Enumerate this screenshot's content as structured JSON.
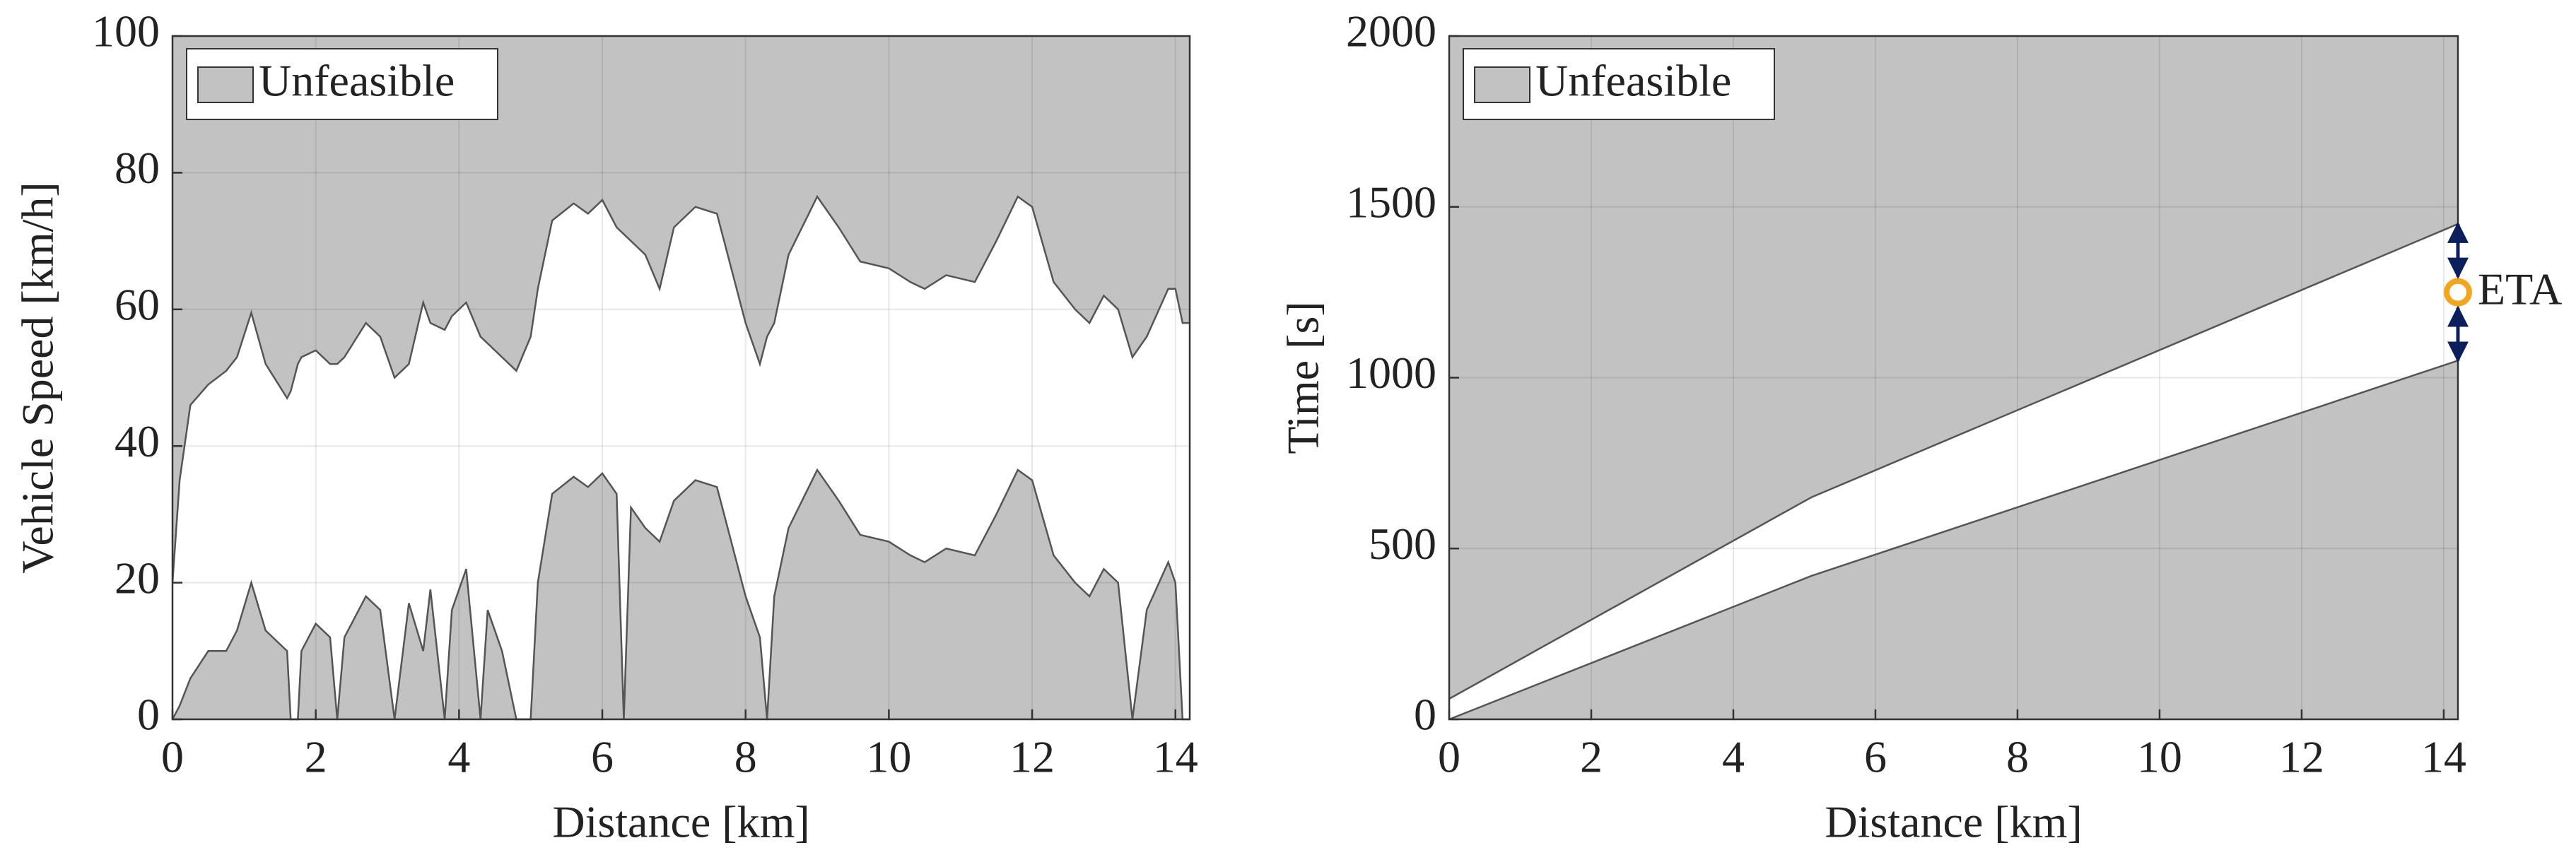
{
  "chart_data": [
    {
      "type": "area",
      "xlabel": "Distance [km]",
      "ylabel": "Vehicle Speed [km/h]",
      "xlim": [
        0,
        14.2
      ],
      "ylim": [
        0,
        100
      ],
      "xticks": [
        0,
        2,
        4,
        6,
        8,
        10,
        12,
        14
      ],
      "yticks": [
        0,
        20,
        40,
        60,
        80,
        100
      ],
      "grid": true,
      "fill_color": "#c2c2c2",
      "line_color": "#555555",
      "legend": {
        "label": "Unfeasible",
        "loc": "upper left"
      },
      "x": [
        0,
        0.1,
        0.25,
        0.5,
        0.75,
        0.9,
        1.1,
        1.3,
        1.6,
        1.65,
        1.75,
        1.8,
        2.0,
        2.2,
        2.3,
        2.4,
        2.7,
        2.9,
        3.1,
        3.3,
        3.5,
        3.6,
        3.8,
        3.9,
        4.1,
        4.3,
        4.4,
        4.6,
        4.8,
        5.0,
        5.1,
        5.3,
        5.6,
        5.8,
        6.0,
        6.2,
        6.3,
        6.4,
        6.6,
        6.8,
        7.0,
        7.3,
        7.6,
        7.8,
        8.0,
        8.2,
        8.3,
        8.4,
        8.6,
        9.0,
        9.3,
        9.6,
        10.0,
        10.3,
        10.5,
        10.8,
        11.2,
        11.5,
        11.8,
        12.0,
        12.3,
        12.6,
        12.8,
        13.0,
        13.2,
        13.4,
        13.6,
        13.9,
        14.0,
        14.1,
        14.2
      ],
      "series": [
        {
          "values": [
            20,
            35,
            46,
            49,
            51,
            53,
            59.5,
            52,
            47,
            48,
            52,
            53,
            54,
            52,
            52,
            53,
            58,
            56,
            50,
            52,
            61,
            58,
            57,
            59,
            61,
            56,
            55,
            53,
            51,
            56,
            63,
            73,
            75.5,
            74,
            76,
            72,
            71,
            70,
            68,
            63,
            72,
            75,
            74,
            66,
            58,
            52,
            56,
            58,
            68,
            76.5,
            72,
            67,
            66,
            64,
            63,
            65,
            64,
            70,
            76.5,
            75,
            64,
            60,
            58,
            62,
            60,
            53,
            56,
            63,
            63,
            58,
            58
          ]
        },
        {
          "values": [
            0,
            2,
            6,
            10,
            10,
            13,
            20,
            13,
            10,
            0,
            0,
            10,
            14,
            12,
            0,
            12,
            18,
            16,
            0,
            17,
            10,
            19,
            0,
            16,
            22,
            0,
            16,
            10,
            0,
            0,
            20,
            33,
            35.5,
            34,
            36,
            33,
            0,
            31,
            28,
            26,
            32,
            35,
            34,
            26,
            18,
            12,
            0,
            18,
            28,
            36.5,
            32,
            27,
            26,
            24,
            23,
            25,
            24,
            30,
            36.5,
            35,
            24,
            20,
            18,
            22,
            20,
            0,
            16,
            23,
            20,
            0,
            0
          ]
        }
      ]
    },
    {
      "type": "area",
      "xlabel": "Distance [km]",
      "ylabel": "Time [s]",
      "xlim": [
        0,
        14.2
      ],
      "ylim": [
        0,
        2000
      ],
      "xticks": [
        0,
        2,
        4,
        6,
        8,
        10,
        12,
        14
      ],
      "yticks": [
        0,
        500,
        1000,
        1500,
        2000
      ],
      "grid": true,
      "fill_color": "#c2c2c2",
      "line_color": "#555555",
      "legend": {
        "label": "Unfeasible",
        "loc": "upper left"
      },
      "x": [
        0,
        5.1,
        14.2
      ],
      "series": [
        {
          "values": [
            60,
            650,
            1450
          ]
        },
        {
          "values": [
            0,
            420,
            1050
          ]
        }
      ],
      "annotation": {
        "text": "ETA",
        "x": 14.2,
        "y": 1250,
        "color": "#f2a51d",
        "arrow_color": "#0b1f5c"
      }
    }
  ]
}
